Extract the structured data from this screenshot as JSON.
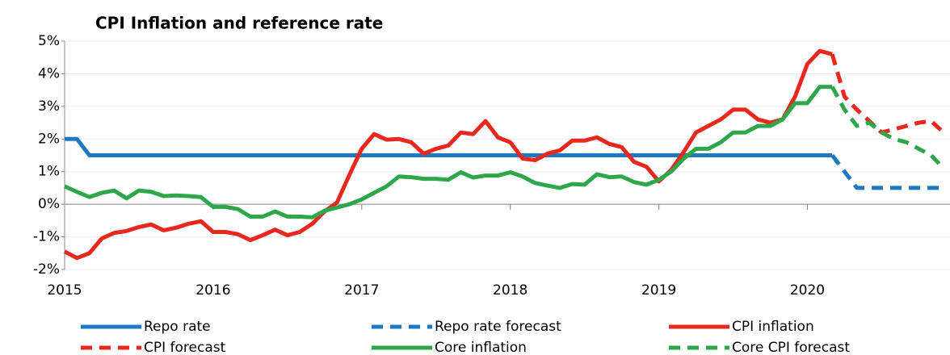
{
  "chart_data": {
    "type": "line",
    "title": "CPI Inflation and reference rate",
    "x": [
      2015,
      2015.083,
      2015.167,
      2015.25,
      2015.333,
      2015.417,
      2015.5,
      2015.583,
      2015.667,
      2015.75,
      2015.833,
      2015.917,
      2016,
      2016.083,
      2016.167,
      2016.25,
      2016.333,
      2016.417,
      2016.5,
      2016.583,
      2016.667,
      2016.75,
      2016.833,
      2016.917,
      2017,
      2017.083,
      2017.167,
      2017.25,
      2017.333,
      2017.417,
      2017.5,
      2017.583,
      2017.667,
      2017.75,
      2017.833,
      2017.917,
      2018,
      2018.083,
      2018.167,
      2018.25,
      2018.333,
      2018.417,
      2018.5,
      2018.583,
      2018.667,
      2018.75,
      2018.833,
      2018.917,
      2019,
      2019.083,
      2019.167,
      2019.25,
      2019.333,
      2019.417,
      2019.5,
      2019.583,
      2019.667,
      2019.75,
      2019.833,
      2019.917,
      2020,
      2020.083,
      2020.167,
      2020.25,
      2020.333,
      2020.417,
      2020.5,
      2020.583,
      2020.667,
      2020.75,
      2020.833,
      2020.917
    ],
    "series": [
      {
        "name": "Repo rate",
        "color": "#1f78c1",
        "dashed": false,
        "values": [
          2,
          2,
          1.5,
          1.5,
          1.5,
          1.5,
          1.5,
          1.5,
          1.5,
          1.5,
          1.5,
          1.5,
          1.5,
          1.5,
          1.5,
          1.5,
          1.5,
          1.5,
          1.5,
          1.5,
          1.5,
          1.5,
          1.5,
          1.5,
          1.5,
          1.5,
          1.5,
          1.5,
          1.5,
          1.5,
          1.5,
          1.5,
          1.5,
          1.5,
          1.5,
          1.5,
          1.5,
          1.5,
          1.5,
          1.5,
          1.5,
          1.5,
          1.5,
          1.5,
          1.5,
          1.5,
          1.5,
          1.5,
          1.5,
          1.5,
          1.5,
          1.5,
          1.5,
          1.5,
          1.5,
          1.5,
          1.5,
          1.5,
          1.5,
          1.5,
          1.5,
          1.5,
          1.5,
          null,
          null,
          null,
          null,
          null,
          null,
          null,
          null,
          null
        ]
      },
      {
        "name": "Repo rate forecast",
        "color": "#1f78c1",
        "dashed": true,
        "values": [
          null,
          null,
          null,
          null,
          null,
          null,
          null,
          null,
          null,
          null,
          null,
          null,
          null,
          null,
          null,
          null,
          null,
          null,
          null,
          null,
          null,
          null,
          null,
          null,
          null,
          null,
          null,
          null,
          null,
          null,
          null,
          null,
          null,
          null,
          null,
          null,
          null,
          null,
          null,
          null,
          null,
          null,
          null,
          null,
          null,
          null,
          null,
          null,
          null,
          null,
          null,
          null,
          null,
          null,
          null,
          null,
          null,
          null,
          null,
          null,
          null,
          null,
          1.5,
          1.0,
          0.5,
          0.5,
          0.5,
          0.5,
          0.5,
          0.5,
          0.5,
          0.5
        ]
      },
      {
        "name": "CPI inflation",
        "color": "#e8281e",
        "dashed": false,
        "values": [
          -1.45,
          -1.65,
          -1.5,
          -1.05,
          -0.88,
          -0.82,
          -0.7,
          -0.62,
          -0.8,
          -0.72,
          -0.6,
          -0.52,
          -0.85,
          -0.85,
          -0.92,
          -1.1,
          -0.95,
          -0.78,
          -0.95,
          -0.85,
          -0.6,
          -0.22,
          0.05,
          0.9,
          1.7,
          2.15,
          1.98,
          2.0,
          1.9,
          1.55,
          1.7,
          1.8,
          2.2,
          2.15,
          2.55,
          2.05,
          1.9,
          1.4,
          1.35,
          1.55,
          1.65,
          1.95,
          1.95,
          2.05,
          1.85,
          1.75,
          1.3,
          1.15,
          0.7,
          1.05,
          1.6,
          2.2,
          2.4,
          2.6,
          2.9,
          2.9,
          2.6,
          2.5,
          2.6,
          3.3,
          4.3,
          4.7,
          4.6,
          null,
          null,
          null,
          null,
          null,
          null,
          null,
          null,
          null
        ]
      },
      {
        "name": "CPI forecast",
        "color": "#e8281e",
        "dashed": true,
        "values": [
          null,
          null,
          null,
          null,
          null,
          null,
          null,
          null,
          null,
          null,
          null,
          null,
          null,
          null,
          null,
          null,
          null,
          null,
          null,
          null,
          null,
          null,
          null,
          null,
          null,
          null,
          null,
          null,
          null,
          null,
          null,
          null,
          null,
          null,
          null,
          null,
          null,
          null,
          null,
          null,
          null,
          null,
          null,
          null,
          null,
          null,
          null,
          null,
          null,
          null,
          null,
          null,
          null,
          null,
          null,
          null,
          null,
          null,
          null,
          null,
          null,
          null,
          4.6,
          3.3,
          2.9,
          2.55,
          2.2,
          2.3,
          2.4,
          2.5,
          2.55,
          2.2
        ]
      },
      {
        "name": "Core inflation",
        "color": "#2ea64a",
        "dashed": false,
        "values": [
          0.55,
          0.38,
          0.22,
          0.35,
          0.42,
          0.18,
          0.42,
          0.38,
          0.25,
          0.27,
          0.25,
          0.22,
          -0.08,
          -0.08,
          -0.15,
          -0.38,
          -0.38,
          -0.22,
          -0.38,
          -0.38,
          -0.4,
          -0.2,
          -0.1,
          0.0,
          0.15,
          0.35,
          0.55,
          0.85,
          0.83,
          0.78,
          0.78,
          0.75,
          0.98,
          0.82,
          0.88,
          0.88,
          0.98,
          0.85,
          0.65,
          0.57,
          0.5,
          0.62,
          0.6,
          0.92,
          0.83,
          0.85,
          0.68,
          0.6,
          0.75,
          1.0,
          1.4,
          1.7,
          1.7,
          1.9,
          2.2,
          2.2,
          2.4,
          2.4,
          2.6,
          3.1,
          3.1,
          3.6,
          3.6,
          null,
          null,
          null,
          null,
          null,
          null,
          null,
          null,
          null
        ]
      },
      {
        "name": "Core CPI forecast",
        "color": "#2ea64a",
        "dashed": true,
        "values": [
          null,
          null,
          null,
          null,
          null,
          null,
          null,
          null,
          null,
          null,
          null,
          null,
          null,
          null,
          null,
          null,
          null,
          null,
          null,
          null,
          null,
          null,
          null,
          null,
          null,
          null,
          null,
          null,
          null,
          null,
          null,
          null,
          null,
          null,
          null,
          null,
          null,
          null,
          null,
          null,
          null,
          null,
          null,
          null,
          null,
          null,
          null,
          null,
          null,
          null,
          null,
          null,
          null,
          null,
          null,
          null,
          null,
          null,
          null,
          null,
          null,
          null,
          3.6,
          2.9,
          2.4,
          2.5,
          2.2,
          2.0,
          1.9,
          1.7,
          1.5,
          1.1
        ]
      }
    ],
    "xlim": [
      2015,
      2020.96
    ],
    "xticks": [
      2015,
      2016,
      2017,
      2018,
      2019,
      2020
    ],
    "ylim": [
      -2,
      5
    ],
    "yticks": [
      {
        "value": -2,
        "label": "-2%"
      },
      {
        "value": -1,
        "label": "-1%"
      },
      {
        "value": 0,
        "label": "0%"
      },
      {
        "value": 1,
        "label": "1%"
      },
      {
        "value": 2,
        "label": "2%"
      },
      {
        "value": 3,
        "label": "3%"
      },
      {
        "value": 4,
        "label": "4%"
      },
      {
        "value": 5,
        "label": "5%"
      }
    ],
    "grid": true
  }
}
